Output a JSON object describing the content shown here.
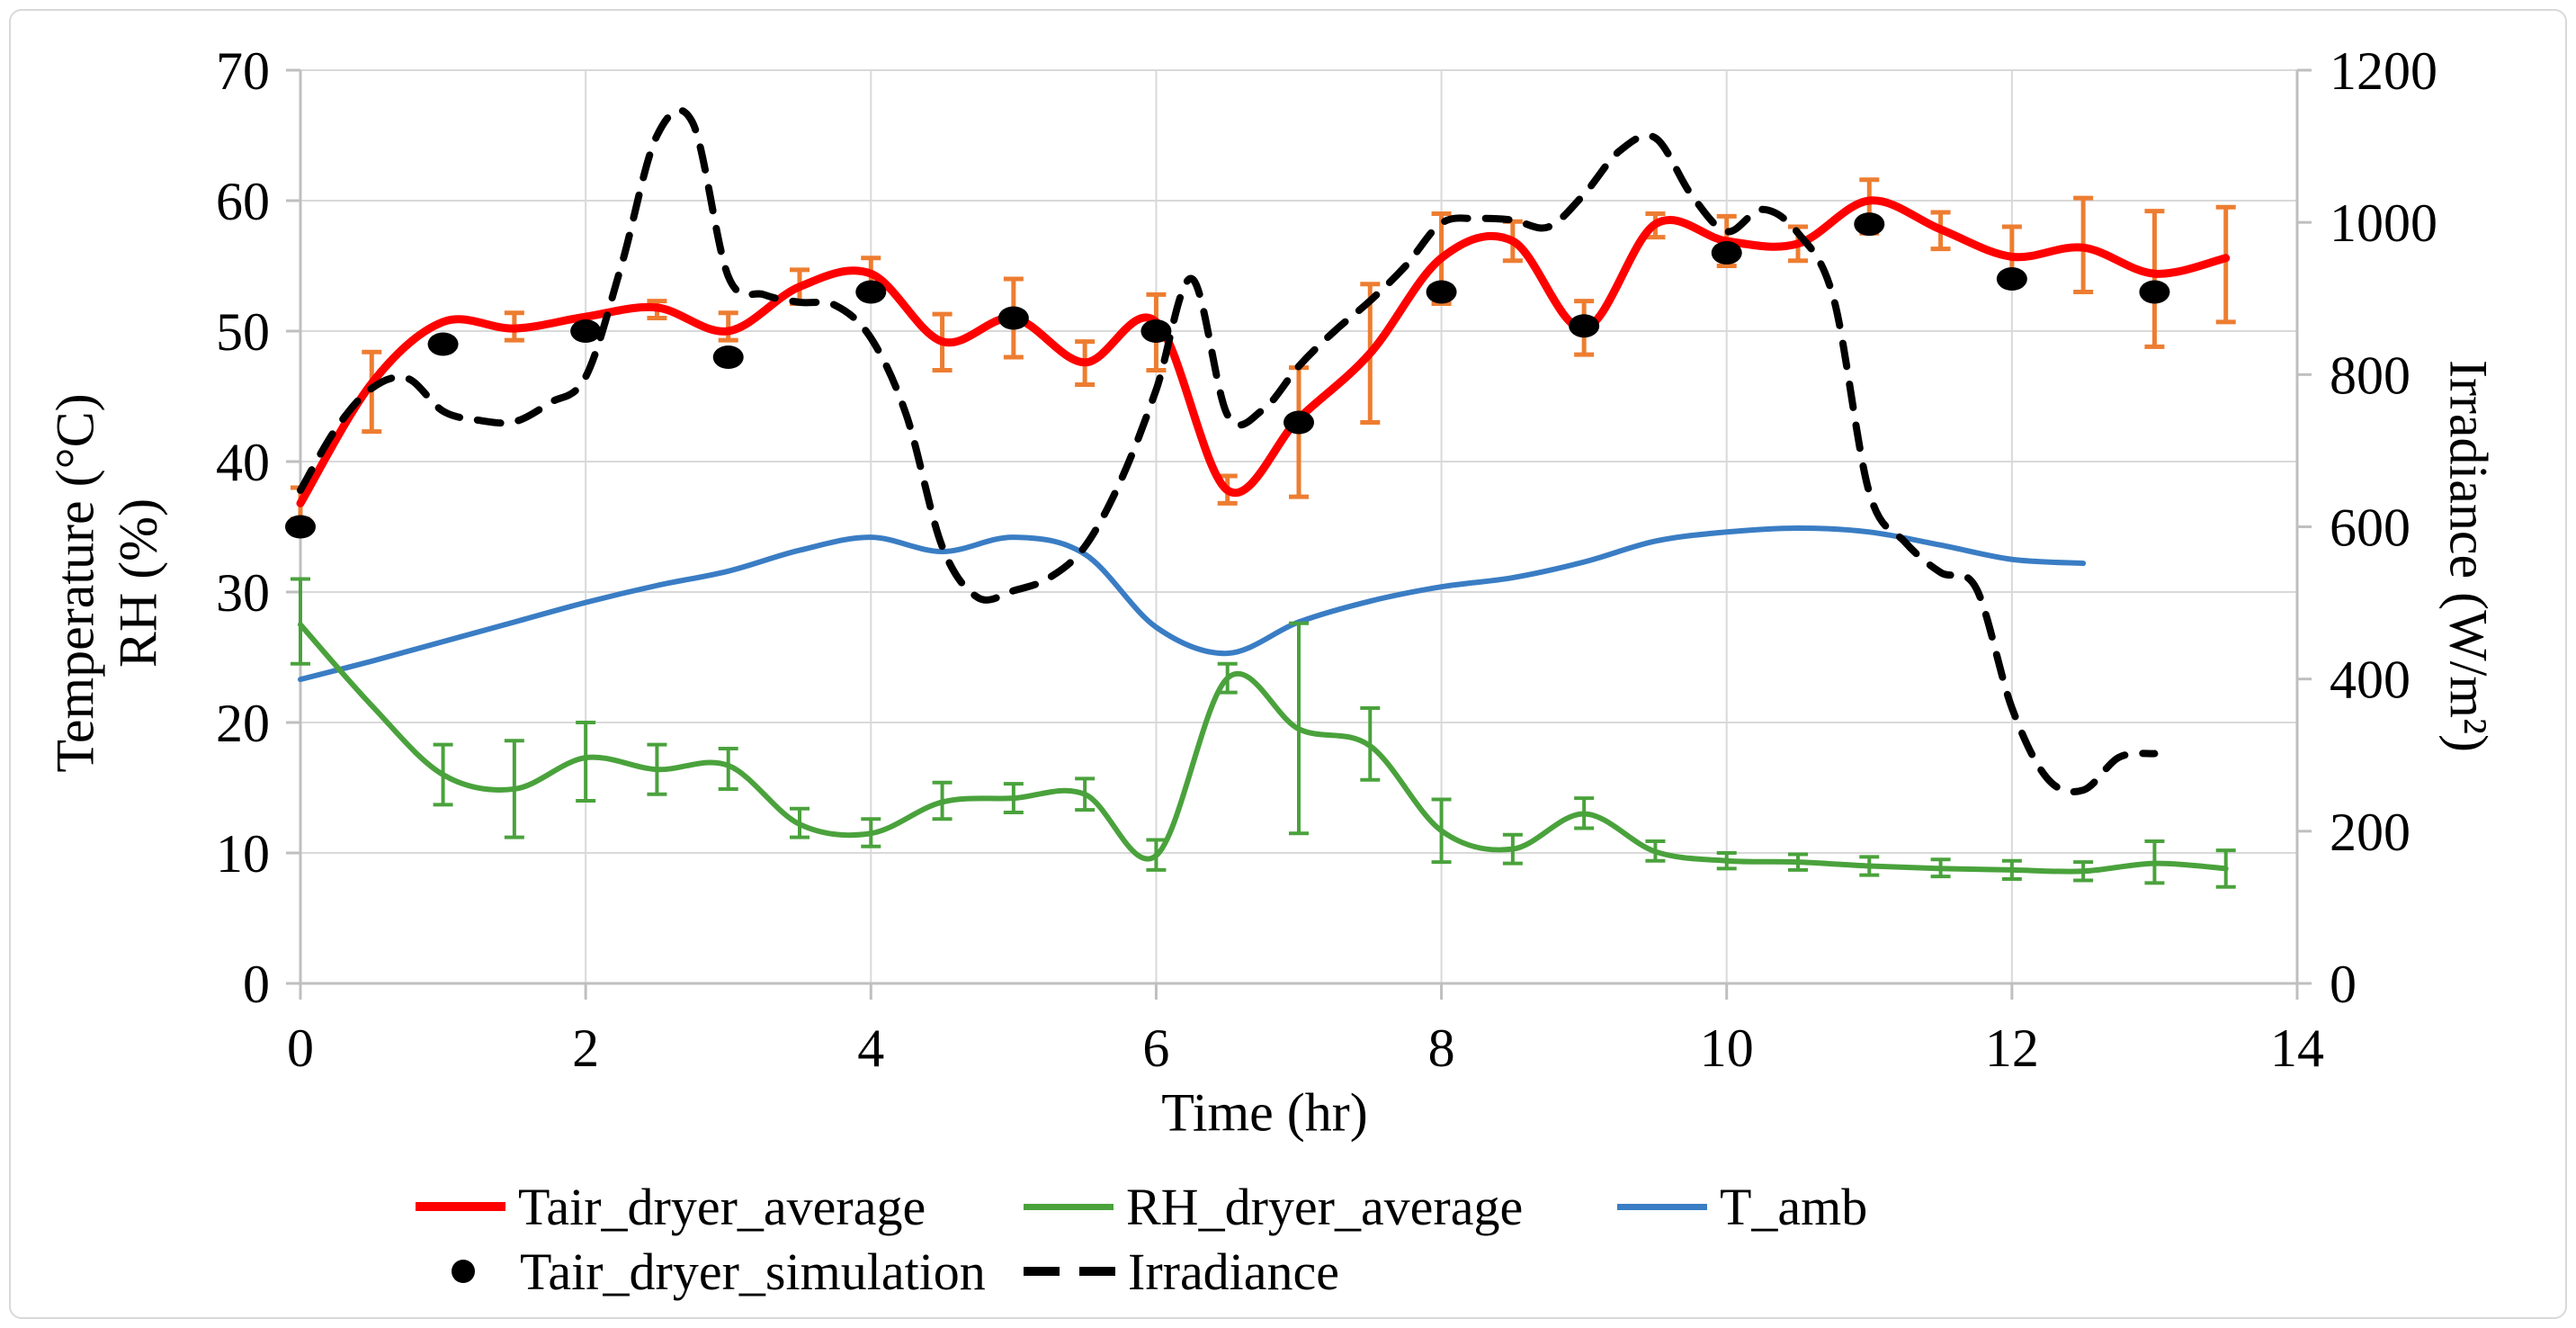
{
  "figure": {
    "background": "#ffffff",
    "border_color": "#d9d9d9",
    "grid_color": "#d9d9d9",
    "axis_color": "#bfbfbf",
    "text_color": "#000000"
  },
  "chart_data": {
    "type": "line",
    "grid": true,
    "x_axis": {
      "title": "Time (hr)",
      "min": 0,
      "max": 14,
      "ticks": [
        0,
        2,
        4,
        6,
        8,
        10,
        12,
        14
      ]
    },
    "y_left": {
      "title_lines": [
        "Temperature (°C)",
        "RH (%)"
      ],
      "min": 0,
      "max": 70,
      "ticks": [
        70,
        60,
        50,
        40,
        30,
        20,
        10,
        0
      ]
    },
    "y_right": {
      "title": "Irradiance (W/m²)",
      "min": 0,
      "max": 1200,
      "ticks": [
        1200,
        1000,
        800,
        600,
        400,
        200,
        0
      ]
    },
    "series": [
      {
        "name": "Tair_dryer_average",
        "axis": "left",
        "type": "line",
        "style": "solid",
        "color": "#FF0000",
        "width": 9,
        "x": [
          0,
          0.5,
          1,
          1.5,
          2,
          2.5,
          3,
          3.5,
          4,
          4.5,
          5,
          5.5,
          6,
          6.5,
          7,
          7.5,
          8,
          8.5,
          9,
          9.5,
          10,
          10.5,
          11,
          11.5,
          12,
          12.5,
          13,
          13.5
        ],
        "y": [
          36.8,
          46,
          50.7,
          50.2,
          51.1,
          51.8,
          50,
          53.4,
          54.4,
          49.2,
          51,
          47.6,
          50.7,
          37.8,
          43.3,
          48.3,
          55.6,
          56.9,
          50.2,
          58.2,
          56.9,
          56.7,
          60,
          57.8,
          55.7,
          56.4,
          54.4,
          55.6
        ],
        "error_color": "#ED7D31",
        "error_bars": [
          [
            0,
            35.6,
            38
          ],
          [
            0.5,
            42.3,
            48.4
          ],
          [
            1.5,
            49.3,
            51.4
          ],
          [
            2.5,
            51,
            52.3
          ],
          [
            3,
            49.3,
            51.4
          ],
          [
            3.5,
            52.1,
            54.7
          ],
          [
            4,
            53.2,
            55.6
          ],
          [
            4.5,
            47,
            51.3
          ],
          [
            5,
            48,
            54
          ],
          [
            5.5,
            45.9,
            49.2
          ],
          [
            6,
            47,
            52.8
          ],
          [
            6.5,
            36.8,
            38.9
          ],
          [
            7,
            37.3,
            47.2
          ],
          [
            7.5,
            43,
            53.6
          ],
          [
            8,
            52.1,
            59
          ],
          [
            8.5,
            55.4,
            58.4
          ],
          [
            9,
            48.2,
            52.3
          ],
          [
            9.5,
            57.2,
            59
          ],
          [
            10,
            55,
            58.8
          ],
          [
            10.5,
            55.4,
            58
          ],
          [
            11,
            57.5,
            61.6
          ],
          [
            11.5,
            56.3,
            59.1
          ],
          [
            12,
            53.5,
            58
          ],
          [
            12.5,
            53,
            60.2
          ],
          [
            13,
            48.8,
            59.2
          ],
          [
            13.5,
            50.7,
            59.5
          ]
        ]
      },
      {
        "name": "RH_dryer_average",
        "axis": "left",
        "type": "line",
        "style": "solid",
        "color": "#4AA23C",
        "width": 6,
        "x": [
          0,
          0.5,
          1,
          1.5,
          2,
          2.5,
          3,
          3.5,
          4,
          4.5,
          5,
          5.5,
          6,
          6.5,
          7,
          7.5,
          8,
          8.5,
          9,
          9.5,
          10,
          10.5,
          11,
          11.5,
          12,
          12.5,
          13,
          13.5
        ],
        "y": [
          27.5,
          21.3,
          16,
          14.9,
          17.3,
          16.4,
          16.7,
          12.2,
          11.5,
          13.9,
          14.2,
          14.5,
          9.8,
          23.4,
          19.5,
          18.2,
          11.7,
          10.3,
          13,
          10.1,
          9.4,
          9.3,
          9,
          8.8,
          8.7,
          8.6,
          9.2,
          8.8
        ],
        "error_color": "#4AA23C",
        "error_bars": [
          [
            0,
            24.5,
            31
          ],
          [
            1,
            13.7,
            18.3
          ],
          [
            1.5,
            11.2,
            18.6
          ],
          [
            2,
            14,
            20
          ],
          [
            2.5,
            14.5,
            18.3
          ],
          [
            3,
            14.9,
            18
          ],
          [
            3.5,
            11.2,
            13.4
          ],
          [
            4,
            10.5,
            12.6
          ],
          [
            4.5,
            12.6,
            15.4
          ],
          [
            5,
            13.1,
            15.3
          ],
          [
            5.5,
            13.3,
            15.7
          ],
          [
            6,
            8.7,
            11
          ],
          [
            6.5,
            22.3,
            24.5
          ],
          [
            7,
            11.5,
            27.6
          ],
          [
            7.5,
            15.6,
            21.1
          ],
          [
            8,
            9.3,
            14.1
          ],
          [
            8.5,
            9.2,
            11.4
          ],
          [
            9,
            11.9,
            14.2
          ],
          [
            9.5,
            9.4,
            10.9
          ],
          [
            10,
            8.8,
            10
          ],
          [
            10.5,
            8.7,
            9.9
          ],
          [
            11,
            8.3,
            9.7
          ],
          [
            11.5,
            8.2,
            9.5
          ],
          [
            12,
            8,
            9.4
          ],
          [
            12.5,
            7.9,
            9.3
          ],
          [
            13,
            7.7,
            10.9
          ],
          [
            13.5,
            7.4,
            10.2
          ]
        ]
      },
      {
        "name": "T_amb",
        "axis": "left",
        "type": "line",
        "style": "solid",
        "color": "#3A7DC4",
        "width": 6,
        "x": [
          0,
          0.5,
          1,
          1.5,
          2,
          2.5,
          3,
          3.5,
          4,
          4.5,
          5,
          5.5,
          6,
          6.5,
          7,
          7.5,
          8,
          8.5,
          9,
          9.5,
          10,
          10.5,
          11,
          11.5,
          12,
          12.5
        ],
        "y": [
          23.3,
          24.7,
          26.2,
          27.7,
          29.2,
          30.5,
          31.6,
          33.2,
          34.2,
          33.1,
          34.2,
          32.9,
          27.3,
          25.3,
          27.7,
          29.3,
          30.4,
          31.1,
          32.3,
          33.9,
          34.6,
          34.9,
          34.6,
          33.6,
          32.5,
          32.2
        ]
      },
      {
        "name": "Tair_dryer_simulation",
        "axis": "left",
        "type": "scatter",
        "color": "#000000",
        "marker": "ellipse",
        "rx": 17,
        "ry": 13,
        "x": [
          0,
          1,
          2,
          3,
          4,
          5,
          6,
          7,
          8,
          9,
          10,
          11,
          12,
          13
        ],
        "y": [
          35,
          49,
          50,
          48,
          53,
          51,
          50,
          43,
          53,
          50.4,
          56,
          58.2,
          54,
          53
        ]
      },
      {
        "name": "Irradiance",
        "axis": "right",
        "type": "line",
        "style": "dashed",
        "color": "#000000",
        "width": 8,
        "x": [
          0,
          0.25,
          0.5,
          0.75,
          1,
          1.25,
          1.5,
          1.75,
          2,
          2.25,
          2.5,
          2.75,
          3,
          3.25,
          3.5,
          3.75,
          4,
          4.25,
          4.5,
          4.75,
          5,
          5.25,
          5.5,
          5.75,
          6,
          6.25,
          6.5,
          6.75,
          7,
          7.25,
          7.5,
          7.75,
          8,
          8.25,
          8.5,
          8.75,
          9,
          9.25,
          9.5,
          9.75,
          10,
          10.25,
          10.5,
          10.75,
          11,
          11.25,
          11.5,
          11.75,
          12,
          12.25,
          12.5,
          12.75,
          13
        ],
        "y": [
          648,
          729,
          782,
          795,
          752,
          740,
          738,
          763,
          797,
          943,
          1114,
          1131,
          929,
          905,
          895,
          891,
          848,
          746,
          574,
          507,
          516,
          533,
          574,
          660,
          780,
          926,
          747,
          754,
          811,
          857,
          897,
          943,
          999,
          1005,
          1003,
          994,
          1037,
          1094,
          1111,
          1037,
          988,
          1017,
          986,
          900,
          645,
          580,
          540,
          519,
          362,
          269,
          254,
          297,
          302
        ]
      }
    ]
  },
  "legend": {
    "rows": 2,
    "items": [
      {
        "label": "Tair_dryer_average",
        "marker": "red-line"
      },
      {
        "label": "RH_dryer_average",
        "marker": "green-line"
      },
      {
        "label": "T_amb",
        "marker": "blue-line"
      },
      {
        "label": "Tair_dryer_simulation",
        "marker": "black-dot"
      },
      {
        "label": "Irradiance",
        "marker": "black-dashes"
      }
    ]
  }
}
